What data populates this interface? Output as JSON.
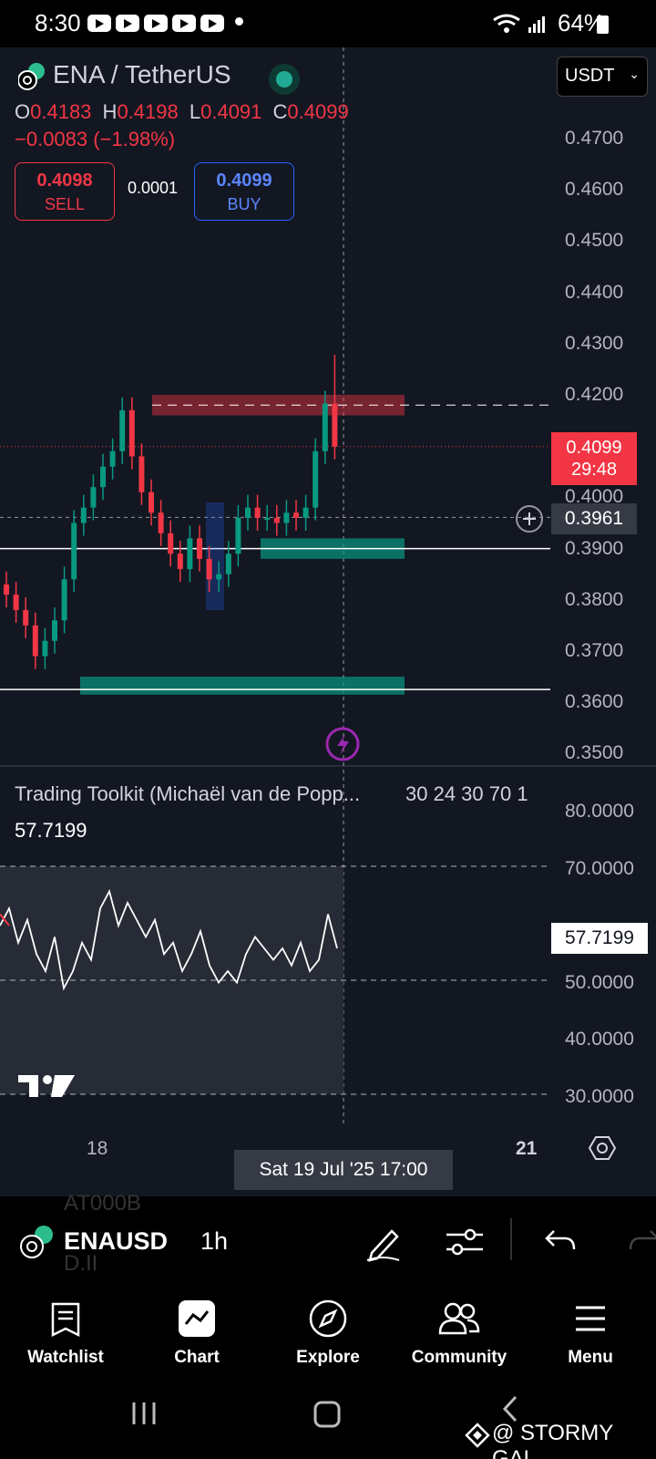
{
  "status_bar": {
    "time": "8:30",
    "battery": "64%"
  },
  "header": {
    "symbol_title": "ENA / TetherUS",
    "ohlc": {
      "o_label": "O",
      "o": "0.4183",
      "h_label": "H",
      "h": "0.4198",
      "l_label": "L",
      "l": "0.4091",
      "c_label": "C",
      "c": "0.4099"
    },
    "change": "−0.0083 (−1.98%)",
    "sell": {
      "price": "0.4098",
      "label": "SELL"
    },
    "buy": {
      "price": "0.4099",
      "label": "BUY"
    },
    "spread": "0.0001",
    "currency": "USDT"
  },
  "price_axis": [
    "0.4700",
    "0.4600",
    "0.4500",
    "0.4400",
    "0.4300",
    "0.4200",
    "0.4000",
    "0.3900",
    "0.3800",
    "0.3700",
    "0.3600",
    "0.3500"
  ],
  "last_price_tag": {
    "price": "0.4099",
    "countdown": "29:48"
  },
  "crosshair_price": "0.3961",
  "indicator": {
    "title": "Trading Toolkit (Michaël van de Popp...",
    "params": "30 24 30 70 1",
    "value": "57.7199",
    "axis": [
      "80.0000",
      "70.0000",
      "50.0000",
      "40.0000",
      "30.0000"
    ],
    "tag": "57.7199"
  },
  "time_axis": {
    "left": "18",
    "crosshair": "Sat 19 Jul '25   17:00",
    "right": "21"
  },
  "toolbar": {
    "symbol": "ENAUSD",
    "interval": "1h",
    "ghost_top": "AT000B",
    "ghost_bottom": "D.II"
  },
  "nav": [
    {
      "label": "Watchlist",
      "icon": "watchlist-icon"
    },
    {
      "label": "Chart",
      "icon": "chart-icon"
    },
    {
      "label": "Explore",
      "icon": "compass-icon"
    },
    {
      "label": "Community",
      "icon": "community-icon"
    },
    {
      "label": "Menu",
      "icon": "menu-icon"
    }
  ],
  "watermark": "@ STORMY GAL",
  "colors": {
    "up": "#089981",
    "down": "#f23645",
    "background": "#131722",
    "accent": "#2962ff"
  },
  "chart_data": {
    "type": "candlestick",
    "title": "ENA / TetherUS",
    "interval": "1h",
    "ylim": [
      0.35,
      0.47
    ],
    "close_series": [
      0.381,
      0.378,
      0.375,
      0.369,
      0.372,
      0.376,
      0.384,
      0.395,
      0.398,
      0.402,
      0.406,
      0.409,
      0.417,
      0.408,
      0.401,
      0.397,
      0.393,
      0.389,
      0.386,
      0.392,
      0.388,
      0.384,
      0.385,
      0.389,
      0.396,
      0.398,
      0.396,
      0.396,
      0.395,
      0.397,
      0.396,
      0.398,
      0.409,
      0.4183,
      0.4099
    ],
    "last_high": 0.4198,
    "last_low": 0.4091,
    "zones": [
      {
        "type": "supply",
        "from": 0.416,
        "to": 0.42
      },
      {
        "type": "demand",
        "from": 0.388,
        "to": 0.392
      },
      {
        "type": "demand",
        "from": 0.3615,
        "to": 0.365
      }
    ],
    "horizontal_lines": [
      0.39,
      0.3625
    ]
  }
}
